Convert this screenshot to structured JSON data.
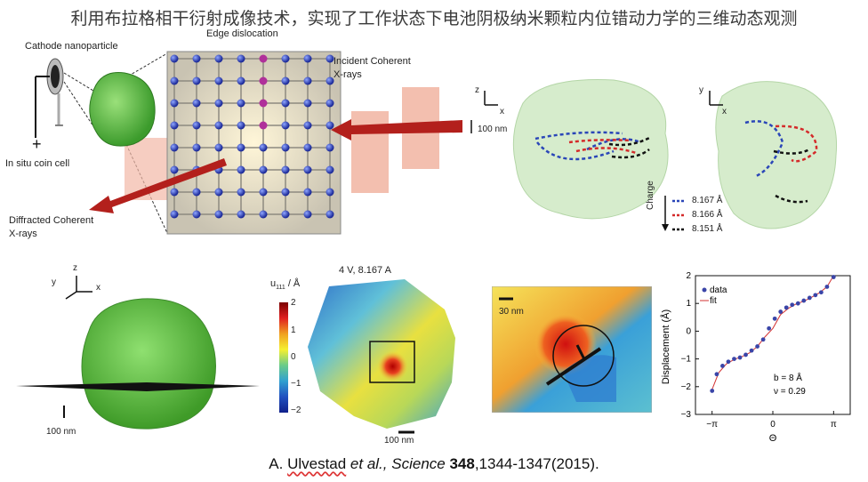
{
  "title": "利用布拉格相干衍射成像技术，实现了工作状态下电池阴极纳米颗粒内位错动力学的三维动态观测",
  "panel_top_left": {
    "cathode_label": "Cathode nanoparticle",
    "edge_label": "Edge dislocation",
    "incident_label": [
      "Incident Coherent",
      "X-rays"
    ],
    "diffracted_label": [
      "Diffracted Coherent",
      "X-rays"
    ],
    "coin_cell_label": "In situ coin cell",
    "minus": "–",
    "plus": "+"
  },
  "panel_top_right": {
    "scale_label": "100 nm",
    "axis_z": "z",
    "axis_x": "x",
    "axis_y": "y",
    "charge_label": "Charge",
    "legend": [
      {
        "label": "8.167 Å",
        "color": "#2a46b8"
      },
      {
        "label": "8.166 Å",
        "color": "#d42a2a"
      },
      {
        "label": "8.151 Å",
        "color": "#111111"
      }
    ]
  },
  "panel_bottom_left": {
    "axis_z": "z",
    "axis_y": "y",
    "axis_x": "x",
    "scale_label": "100 nm"
  },
  "panel_bottom_mid": {
    "heading": "4 V, 8.167 A",
    "colorbar_label": "u",
    "colorbar_sub": "111",
    "colorbar_unit": " / Å",
    "colorbar_ticks": [
      "2",
      "1",
      "0",
      "−1",
      "−2"
    ],
    "scale_label": "100 nm"
  },
  "panel_zoom": {
    "scale_label": "30 nm"
  },
  "chart_data": {
    "type": "scatter",
    "xlabel": "Θ",
    "ylabel": "Displacement (Å)",
    "ylim": [
      -3,
      2
    ],
    "xlim": [
      -4.0,
      4.0
    ],
    "x_ticks": [
      "−π",
      "0",
      "π"
    ],
    "y_ticks": [
      "2",
      "1",
      "0",
      "−1",
      "−2",
      "−3"
    ],
    "legend": [
      "data",
      "fit"
    ],
    "annotations": [
      "b = 8 Å",
      "ν = 0.29"
    ],
    "series": [
      {
        "name": "data",
        "color": "#3a45a8",
        "x": [
          -3.14,
          -2.9,
          -2.6,
          -2.3,
          -2.0,
          -1.7,
          -1.4,
          -1.1,
          -0.8,
          -0.5,
          -0.2,
          0.1,
          0.4,
          0.7,
          1.0,
          1.3,
          1.6,
          1.9,
          2.2,
          2.5,
          2.8,
          3.14
        ],
        "y": [
          -2.15,
          -1.55,
          -1.25,
          -1.1,
          -1.0,
          -0.95,
          -0.85,
          -0.7,
          -0.55,
          -0.3,
          0.1,
          0.45,
          0.7,
          0.85,
          0.95,
          1.0,
          1.1,
          1.2,
          1.3,
          1.4,
          1.6,
          1.95
        ]
      },
      {
        "name": "fit",
        "color": "#d33333",
        "x": [
          -3.14,
          -2.8,
          -2.4,
          -2.0,
          -1.6,
          -1.2,
          -0.8,
          -0.4,
          0,
          0.4,
          0.8,
          1.2,
          1.6,
          2.0,
          2.4,
          2.8,
          3.14
        ],
        "y": [
          -2.1,
          -1.5,
          -1.18,
          -1.02,
          -0.92,
          -0.78,
          -0.55,
          -0.2,
          0.1,
          0.6,
          0.82,
          0.98,
          1.08,
          1.22,
          1.38,
          1.6,
          2.0
        ]
      }
    ]
  },
  "citation": {
    "prefix": "A. ",
    "author": "Ulvestad",
    "etal": " et al.",
    "journal": ", Science ",
    "volume": "348",
    "pages": ",1344-1347(2015)."
  }
}
